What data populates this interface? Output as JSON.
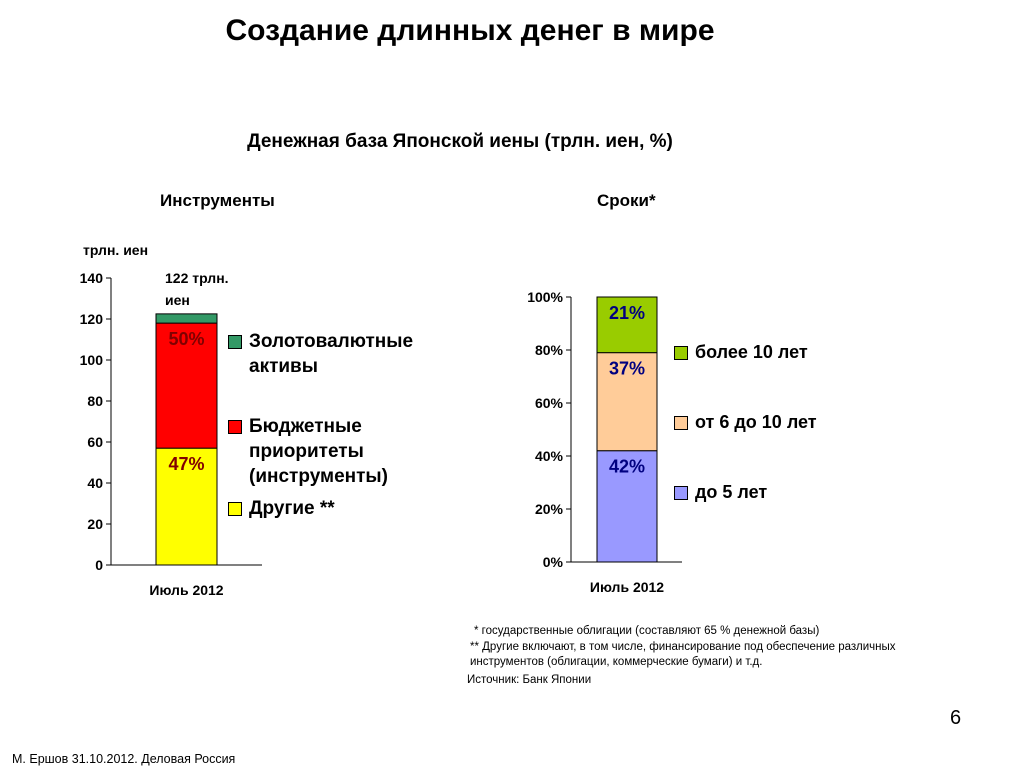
{
  "page": {
    "title": "Создание длинных денег в мире",
    "subtitle": "Денежная база Японской иены (трлн. иен, %)",
    "footer": "М. Ершов 31.10.2012. Деловая Россия",
    "page_number": "6"
  },
  "left_panel": {
    "heading": "Инструменты",
    "unit_label": "трлн. иен",
    "total_note_line1": "122 трлн.",
    "total_note_line2": "иен"
  },
  "right_panel": {
    "heading": "Сроки*"
  },
  "footnotes": {
    "line1": "* государственные облигации (составляют 65 % денежной базы)",
    "line2": "** Другие включают, в том числе, финансирование под обеспечение различных",
    "line3": "инструментов (облигации, коммерческие бумаги) и т.д.",
    "source": "Источник: Банк Японии"
  },
  "chart_data": [
    {
      "type": "bar",
      "stacked": true,
      "categories": [
        "Июль 2012"
      ],
      "ylim": [
        0,
        140
      ],
      "yticks": [
        "0",
        "20",
        "40",
        "60",
        "80",
        "100",
        "120",
        "140"
      ],
      "ylabel": "трлн. иен",
      "total": 122,
      "series": [
        {
          "name": "Другие **",
          "values": [
            57
          ],
          "label": "47%",
          "color": "#ffff00"
        },
        {
          "name": "Бюджетные приоритеты (инструменты)",
          "values": [
            61
          ],
          "label": "50%",
          "color": "#ff0000"
        },
        {
          "name": "Золотовалютные активы",
          "values": [
            4.5
          ],
          "label": "",
          "color": "#339966"
        }
      ],
      "legend_lines": [
        [
          "Золотовалютные",
          "активы"
        ],
        [
          "Бюджетные",
          "приоритеты",
          "(инструменты)"
        ],
        [
          "Другие **"
        ]
      ]
    },
    {
      "type": "bar",
      "stacked": true,
      "categories": [
        "Июль 2012"
      ],
      "ylim": [
        0,
        100
      ],
      "yticks": [
        "0%",
        "20%",
        "40%",
        "60%",
        "80%",
        "100%"
      ],
      "series": [
        {
          "name": "до 5 лет",
          "values": [
            42
          ],
          "label": "42%",
          "color": "#9999ff"
        },
        {
          "name": "от 6 до 10 лет",
          "values": [
            37
          ],
          "label": "37%",
          "color": "#ffcc99"
        },
        {
          "name": "более 10 лет",
          "values": [
            21
          ],
          "label": "21%",
          "color": "#99cc00"
        }
      ]
    }
  ]
}
